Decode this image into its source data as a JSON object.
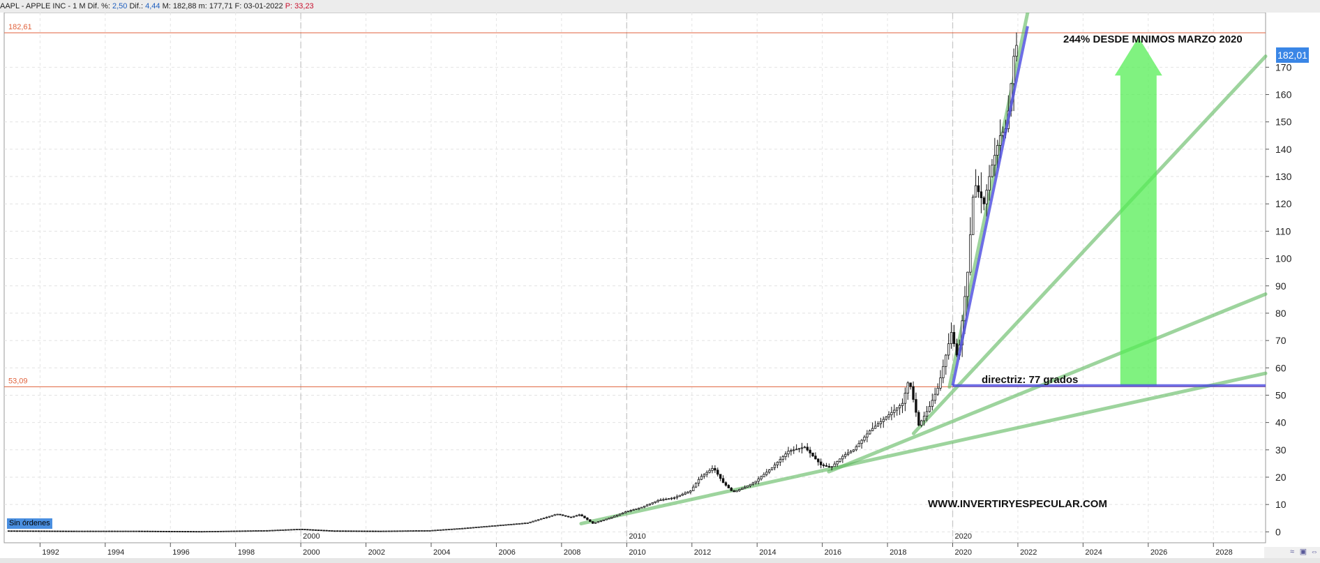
{
  "header": {
    "symbol": "AAPL - APPLE INC - ",
    "timeframe": " 1 M ",
    "difpct_label": "Dif. %: ",
    "difpct_value": "2,50",
    "dif_label": " Dif.: ",
    "dif_value": "4,44",
    "max_label": " M: 182,88",
    "min_label": " m: 177,71",
    "date_label": " F: 03-01-2022",
    "p_label": " P: 33,23"
  },
  "badges": {
    "sin_ordenes": "Sin órdenes",
    "last_price": "182,01"
  },
  "corner_icons": [
    "chart-type-icon",
    "save-icon",
    "settings-icon"
  ],
  "colors": {
    "hline": "#e0623c",
    "fan": "#5cb85c",
    "directriz": "#4a4ae0",
    "arrow": "#55ee55",
    "candle": "#111111"
  },
  "chart_data": {
    "type": "candlestick",
    "y_ticks": [
      0,
      10,
      20,
      30,
      40,
      50,
      60,
      70,
      80,
      90,
      100,
      110,
      120,
      130,
      140,
      150,
      160,
      170
    ],
    "ylim": [
      -4,
      190
    ],
    "x_ticks_bottom": [
      "1992",
      "1994",
      "1996",
      "1998",
      "2000",
      "2002",
      "2004",
      "2006",
      "2008",
      "2010",
      "2012",
      "2014",
      "2016",
      "2018",
      "2020",
      "2022",
      "2024",
      "2026",
      "2028"
    ],
    "x_year_markers": [
      "2000",
      "2010",
      "2020"
    ],
    "xlim": [
      1990.9,
      2029.6
    ],
    "horizontal_lines": [
      {
        "label": "182,61",
        "value": 182.61
      },
      {
        "label": "53,09",
        "value": 53.09
      }
    ],
    "annotations": {
      "title_note": "244% DESDE MNIMOS MARZO 2020",
      "directriz": "directriz: 77 grados",
      "watermark": "WWW.INVERTIRYESPECULAR.COM"
    },
    "monthly_close": [
      [
        1991.0,
        0.4
      ],
      [
        1993.0,
        0.3
      ],
      [
        1995.0,
        0.3
      ],
      [
        1997.0,
        0.15
      ],
      [
        1999.0,
        0.5
      ],
      [
        2000.0,
        1.0
      ],
      [
        2001.0,
        0.4
      ],
      [
        2002.5,
        0.3
      ],
      [
        2004.0,
        0.5
      ],
      [
        2005.0,
        1.3
      ],
      [
        2006.0,
        2.3
      ],
      [
        2007.0,
        3.3
      ],
      [
        2007.9,
        6.5
      ],
      [
        2008.3,
        5.3
      ],
      [
        2008.6,
        6.3
      ],
      [
        2009.0,
        3.1
      ],
      [
        2009.5,
        5.0
      ],
      [
        2010.0,
        7.3
      ],
      [
        2010.5,
        9.0
      ],
      [
        2011.0,
        11.5
      ],
      [
        2011.5,
        12.5
      ],
      [
        2012.0,
        15.0
      ],
      [
        2012.3,
        20.0
      ],
      [
        2012.7,
        23.5
      ],
      [
        2013.0,
        18.0
      ],
      [
        2013.3,
        14.5
      ],
      [
        2013.7,
        16.5
      ],
      [
        2014.0,
        18.5
      ],
      [
        2014.5,
        23.5
      ],
      [
        2015.0,
        29.5
      ],
      [
        2015.5,
        31.0
      ],
      [
        2016.0,
        24.5
      ],
      [
        2016.3,
        23.5
      ],
      [
        2016.7,
        28.0
      ],
      [
        2017.0,
        30.0
      ],
      [
        2017.5,
        37.0
      ],
      [
        2018.0,
        42.0
      ],
      [
        2018.5,
        47.0
      ],
      [
        2018.7,
        56.0
      ],
      [
        2019.0,
        39.0
      ],
      [
        2019.3,
        45.0
      ],
      [
        2019.6,
        53.0
      ],
      [
        2020.0,
        73.0
      ],
      [
        2020.2,
        63.0
      ],
      [
        2020.5,
        95.0
      ],
      [
        2020.7,
        128.0
      ],
      [
        2021.0,
        120.0
      ],
      [
        2021.2,
        132.0
      ],
      [
        2021.5,
        145.0
      ],
      [
        2021.7,
        148.0
      ],
      [
        2021.95,
        178.0
      ]
    ],
    "fan_lines": [
      [
        [
          2008.6,
          3.0
        ],
        [
          2029.6,
          58.0
        ]
      ],
      [
        [
          2016.2,
          22.0
        ],
        [
          2029.6,
          87.0
        ]
      ],
      [
        [
          2018.8,
          36.0
        ],
        [
          2029.6,
          174.0
        ]
      ],
      [
        [
          2019.9,
          53.0
        ],
        [
          2022.3,
          190.0
        ]
      ]
    ],
    "directriz_lines": [
      [
        [
          2020.0,
          53.5
        ],
        [
          2022.3,
          185.0
        ]
      ],
      [
        [
          2020.0,
          53.5
        ],
        [
          2029.6,
          53.5
        ]
      ]
    ],
    "arrow": {
      "x": 2025.7,
      "from": 53.5,
      "to": 181.0
    }
  }
}
